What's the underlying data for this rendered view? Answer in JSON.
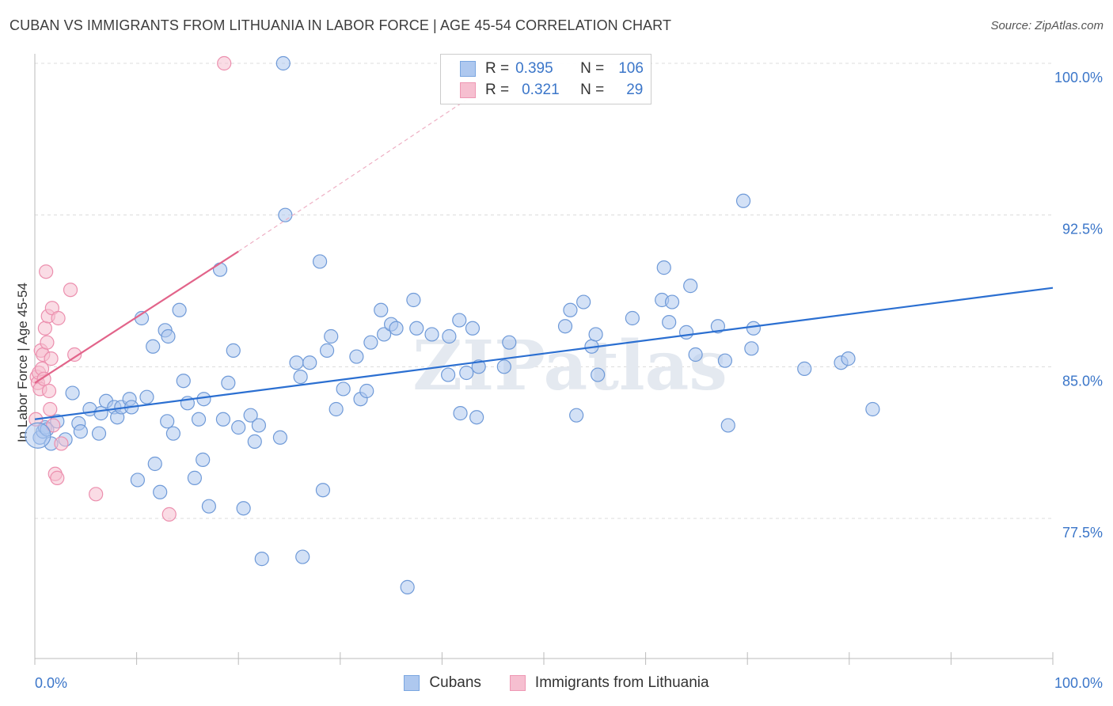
{
  "title": "CUBAN VS IMMIGRANTS FROM LITHUANIA IN LABOR FORCE | AGE 45-54 CORRELATION CHART",
  "source": "Source: ZipAtlas.com",
  "watermark": "ZIPatlas",
  "legend": {
    "rows": [
      {
        "r_label": "R =",
        "r_value": "0.395",
        "n_label": "N =",
        "n_value": "106",
        "fill": "#aec8ef",
        "stroke": "#7aa6e0"
      },
      {
        "r_label": "R =",
        "r_value": "0.321",
        "n_label": "N =",
        "n_value": "29",
        "fill": "#f6bfd0",
        "stroke": "#ee97b3"
      }
    ]
  },
  "bottom_legend": {
    "series1": "Cubans",
    "series2": "Immigrants from Lithuania"
  },
  "colors": {
    "blue_fill": "#aec8ef",
    "blue_stroke": "#6f9ad8",
    "blue_line": "#2b6fd1",
    "pink_fill": "#f6bfd0",
    "pink_stroke": "#ec8fae",
    "pink_line": "#e2648a",
    "axis_text": "#3b76c9",
    "grid": "#dcdcdc"
  },
  "chart_data": {
    "type": "scatter",
    "title": "CUBAN VS IMMIGRANTS FROM LITHUANIA IN LABOR FORCE | AGE 45-54 CORRELATION CHART",
    "ylabel": "In Labor Force | Age 45-54",
    "xlim": [
      0,
      100
    ],
    "ylim": [
      70.5,
      101
    ],
    "x_tick_labels": [
      "0.0%",
      "100.0%"
    ],
    "y_ticks": [
      77.5,
      85.0,
      92.5,
      100.0
    ],
    "y_tick_labels": [
      "77.5%",
      "85.0%",
      "92.5%",
      "100.0%"
    ],
    "grid": true,
    "series": [
      {
        "name": "Cubans",
        "color": "#aec8ef",
        "r": 0.395,
        "n": 106,
        "trend": {
          "x": [
            0,
            100
          ],
          "y": [
            82.4,
            88.9
          ]
        },
        "points": [
          [
            0.5,
            81.5
          ],
          [
            0.8,
            81.8
          ],
          [
            1,
            82
          ],
          [
            1.2,
            81.9
          ],
          [
            1.6,
            81.2
          ],
          [
            2.2,
            82.3
          ],
          [
            3,
            81.4
          ],
          [
            3.7,
            83.7
          ],
          [
            4.3,
            82.2
          ],
          [
            4.5,
            81.8
          ],
          [
            5.4,
            82.9
          ],
          [
            6.3,
            81.7
          ],
          [
            6.5,
            82.7
          ],
          [
            7,
            83.3
          ],
          [
            7.8,
            83.0
          ],
          [
            8.1,
            82.5
          ],
          [
            8.5,
            83
          ],
          [
            9.3,
            83.4
          ],
          [
            9.5,
            83
          ],
          [
            10.5,
            87.4
          ],
          [
            10.1,
            79.4
          ],
          [
            11,
            83.5
          ],
          [
            11.6,
            86.0
          ],
          [
            11.8,
            80.2
          ],
          [
            12.3,
            78.8
          ],
          [
            12.8,
            86.8
          ],
          [
            13.0,
            82.3
          ],
          [
            13.1,
            86.5
          ],
          [
            13.6,
            81.7
          ],
          [
            14.2,
            87.8
          ],
          [
            14.6,
            84.3
          ],
          [
            15.0,
            83.2
          ],
          [
            15.7,
            79.5
          ],
          [
            16.1,
            82.4
          ],
          [
            16.5,
            80.4
          ],
          [
            16.6,
            83.4
          ],
          [
            17.1,
            78.1
          ],
          [
            18.2,
            89.8
          ],
          [
            18.5,
            82.4
          ],
          [
            19,
            84.2
          ],
          [
            19.5,
            85.8
          ],
          [
            20,
            82.0
          ],
          [
            20.5,
            78.0
          ],
          [
            21.2,
            82.6
          ],
          [
            21.6,
            81.3
          ],
          [
            22.0,
            82.1
          ],
          [
            22.3,
            75.5
          ],
          [
            24.1,
            81.5
          ],
          [
            24.4,
            100
          ],
          [
            24.6,
            92.5
          ],
          [
            25.7,
            85.2
          ],
          [
            26.1,
            84.5
          ],
          [
            26.3,
            75.6
          ],
          [
            27,
            85.2
          ],
          [
            28,
            90.2
          ],
          [
            28.3,
            78.9
          ],
          [
            28.7,
            85.8
          ],
          [
            29.1,
            86.5
          ],
          [
            29.6,
            82.9
          ],
          [
            30.3,
            83.9
          ],
          [
            31.6,
            85.5
          ],
          [
            32.0,
            83.4
          ],
          [
            32.6,
            83.8
          ],
          [
            33.0,
            86.2
          ],
          [
            34,
            87.8
          ],
          [
            34.3,
            86.6
          ],
          [
            35,
            87.1
          ],
          [
            35.5,
            86.9
          ],
          [
            36.6,
            74.1
          ],
          [
            37.2,
            88.3
          ],
          [
            37.5,
            86.9
          ],
          [
            39.0,
            86.6
          ],
          [
            40.6,
            84.6
          ],
          [
            40.7,
            86.5
          ],
          [
            41.7,
            87.3
          ],
          [
            41.8,
            82.7
          ],
          [
            42.4,
            84.7
          ],
          [
            43.0,
            86.9
          ],
          [
            43.4,
            82.5
          ],
          [
            43.6,
            85
          ],
          [
            46.1,
            85.0
          ],
          [
            46.6,
            86.2
          ],
          [
            52.1,
            87.0
          ],
          [
            52.6,
            87.8
          ],
          [
            53.2,
            82.6
          ],
          [
            53.9,
            88.2
          ],
          [
            54.7,
            86.0
          ],
          [
            55.1,
            86.6
          ],
          [
            55.3,
            84.6
          ],
          [
            58.7,
            87.4
          ],
          [
            61.6,
            88.3
          ],
          [
            61.8,
            89.9
          ],
          [
            62.3,
            87.2
          ],
          [
            62.6,
            88.2
          ],
          [
            64.0,
            86.7
          ],
          [
            64.4,
            89.0
          ],
          [
            64.9,
            85.6
          ],
          [
            67.1,
            87.0
          ],
          [
            67.8,
            85.3
          ],
          [
            68.1,
            82.1
          ],
          [
            69.6,
            93.2
          ],
          [
            70.4,
            85.9
          ],
          [
            70.6,
            86.9
          ],
          [
            75.6,
            84.9
          ],
          [
            79.2,
            85.2
          ],
          [
            79.9,
            85.4
          ],
          [
            82.3,
            82.9
          ]
        ]
      },
      {
        "name": "Immigrants from Lithuania",
        "color": "#f6bfd0",
        "r": 0.321,
        "n": 29,
        "trend": {
          "x": [
            0,
            20
          ],
          "y": [
            84.2,
            90.7
          ]
        },
        "trend_ext": {
          "x": [
            20,
            43
          ],
          "y": [
            90.7,
            98.4
          ]
        },
        "points": [
          [
            0.1,
            82.4
          ],
          [
            0.2,
            84.5
          ],
          [
            0.3,
            84.2
          ],
          [
            0.4,
            84.7
          ],
          [
            0.5,
            83.9
          ],
          [
            0.6,
            85.8
          ],
          [
            0.7,
            84.9
          ],
          [
            0.8,
            85.6
          ],
          [
            0.9,
            84.4
          ],
          [
            1.0,
            86.9
          ],
          [
            1.1,
            89.7
          ],
          [
            1.2,
            86.2
          ],
          [
            1.3,
            87.5
          ],
          [
            1.4,
            83.8
          ],
          [
            1.5,
            82.9
          ],
          [
            1.6,
            85.4
          ],
          [
            1.7,
            87.9
          ],
          [
            1.8,
            82.1
          ],
          [
            2.0,
            79.7
          ],
          [
            2.2,
            79.5
          ],
          [
            2.3,
            87.4
          ],
          [
            2.6,
            81.2
          ],
          [
            3.5,
            88.8
          ],
          [
            3.9,
            85.6
          ],
          [
            6.0,
            78.7
          ],
          [
            13.2,
            77.7
          ],
          [
            18.6,
            100
          ]
        ]
      }
    ]
  }
}
